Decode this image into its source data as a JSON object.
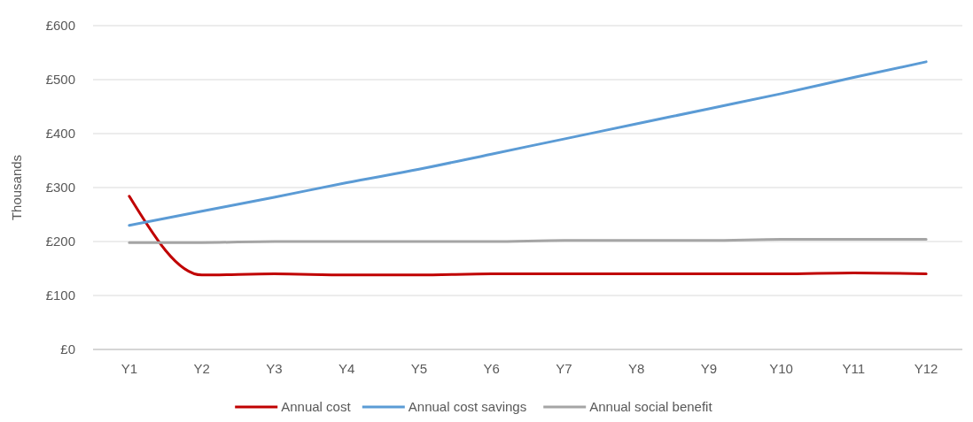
{
  "chart_data": {
    "type": "line",
    "ylabel": "Thousands",
    "categories": [
      "Y1",
      "Y2",
      "Y3",
      "Y4",
      "Y5",
      "Y6",
      "Y7",
      "Y8",
      "Y9",
      "Y10",
      "Y11",
      "Y12"
    ],
    "series": [
      {
        "name": "Annual cost",
        "color": "#c00000",
        "values": [
          284,
          138,
          140,
          138,
          138,
          140,
          140,
          140,
          140,
          140,
          142,
          140
        ]
      },
      {
        "name": "Annual cost savings",
        "color": "#5b9bd5",
        "values": [
          230,
          256,
          282,
          309,
          334,
          362,
          390,
          418,
          446,
          474,
          504,
          533
        ]
      },
      {
        "name": "Annual social benefit",
        "color": "#a5a5a5",
        "values": [
          198,
          198,
          200,
          200,
          200,
          200,
          202,
          202,
          202,
          204,
          204,
          204
        ]
      }
    ],
    "ylim": [
      0,
      600
    ],
    "yticks": [
      {
        "value": 0,
        "label": "£0"
      },
      {
        "value": 100,
        "label": "£100"
      },
      {
        "value": 200,
        "label": "£200"
      },
      {
        "value": 300,
        "label": "£300"
      },
      {
        "value": 400,
        "label": "£400"
      },
      {
        "value": 500,
        "label": "£500"
      },
      {
        "value": 600,
        "label": "£600"
      }
    ],
    "grid": "y",
    "legend": "bottom",
    "line_style": "solid",
    "marker": "none"
  }
}
